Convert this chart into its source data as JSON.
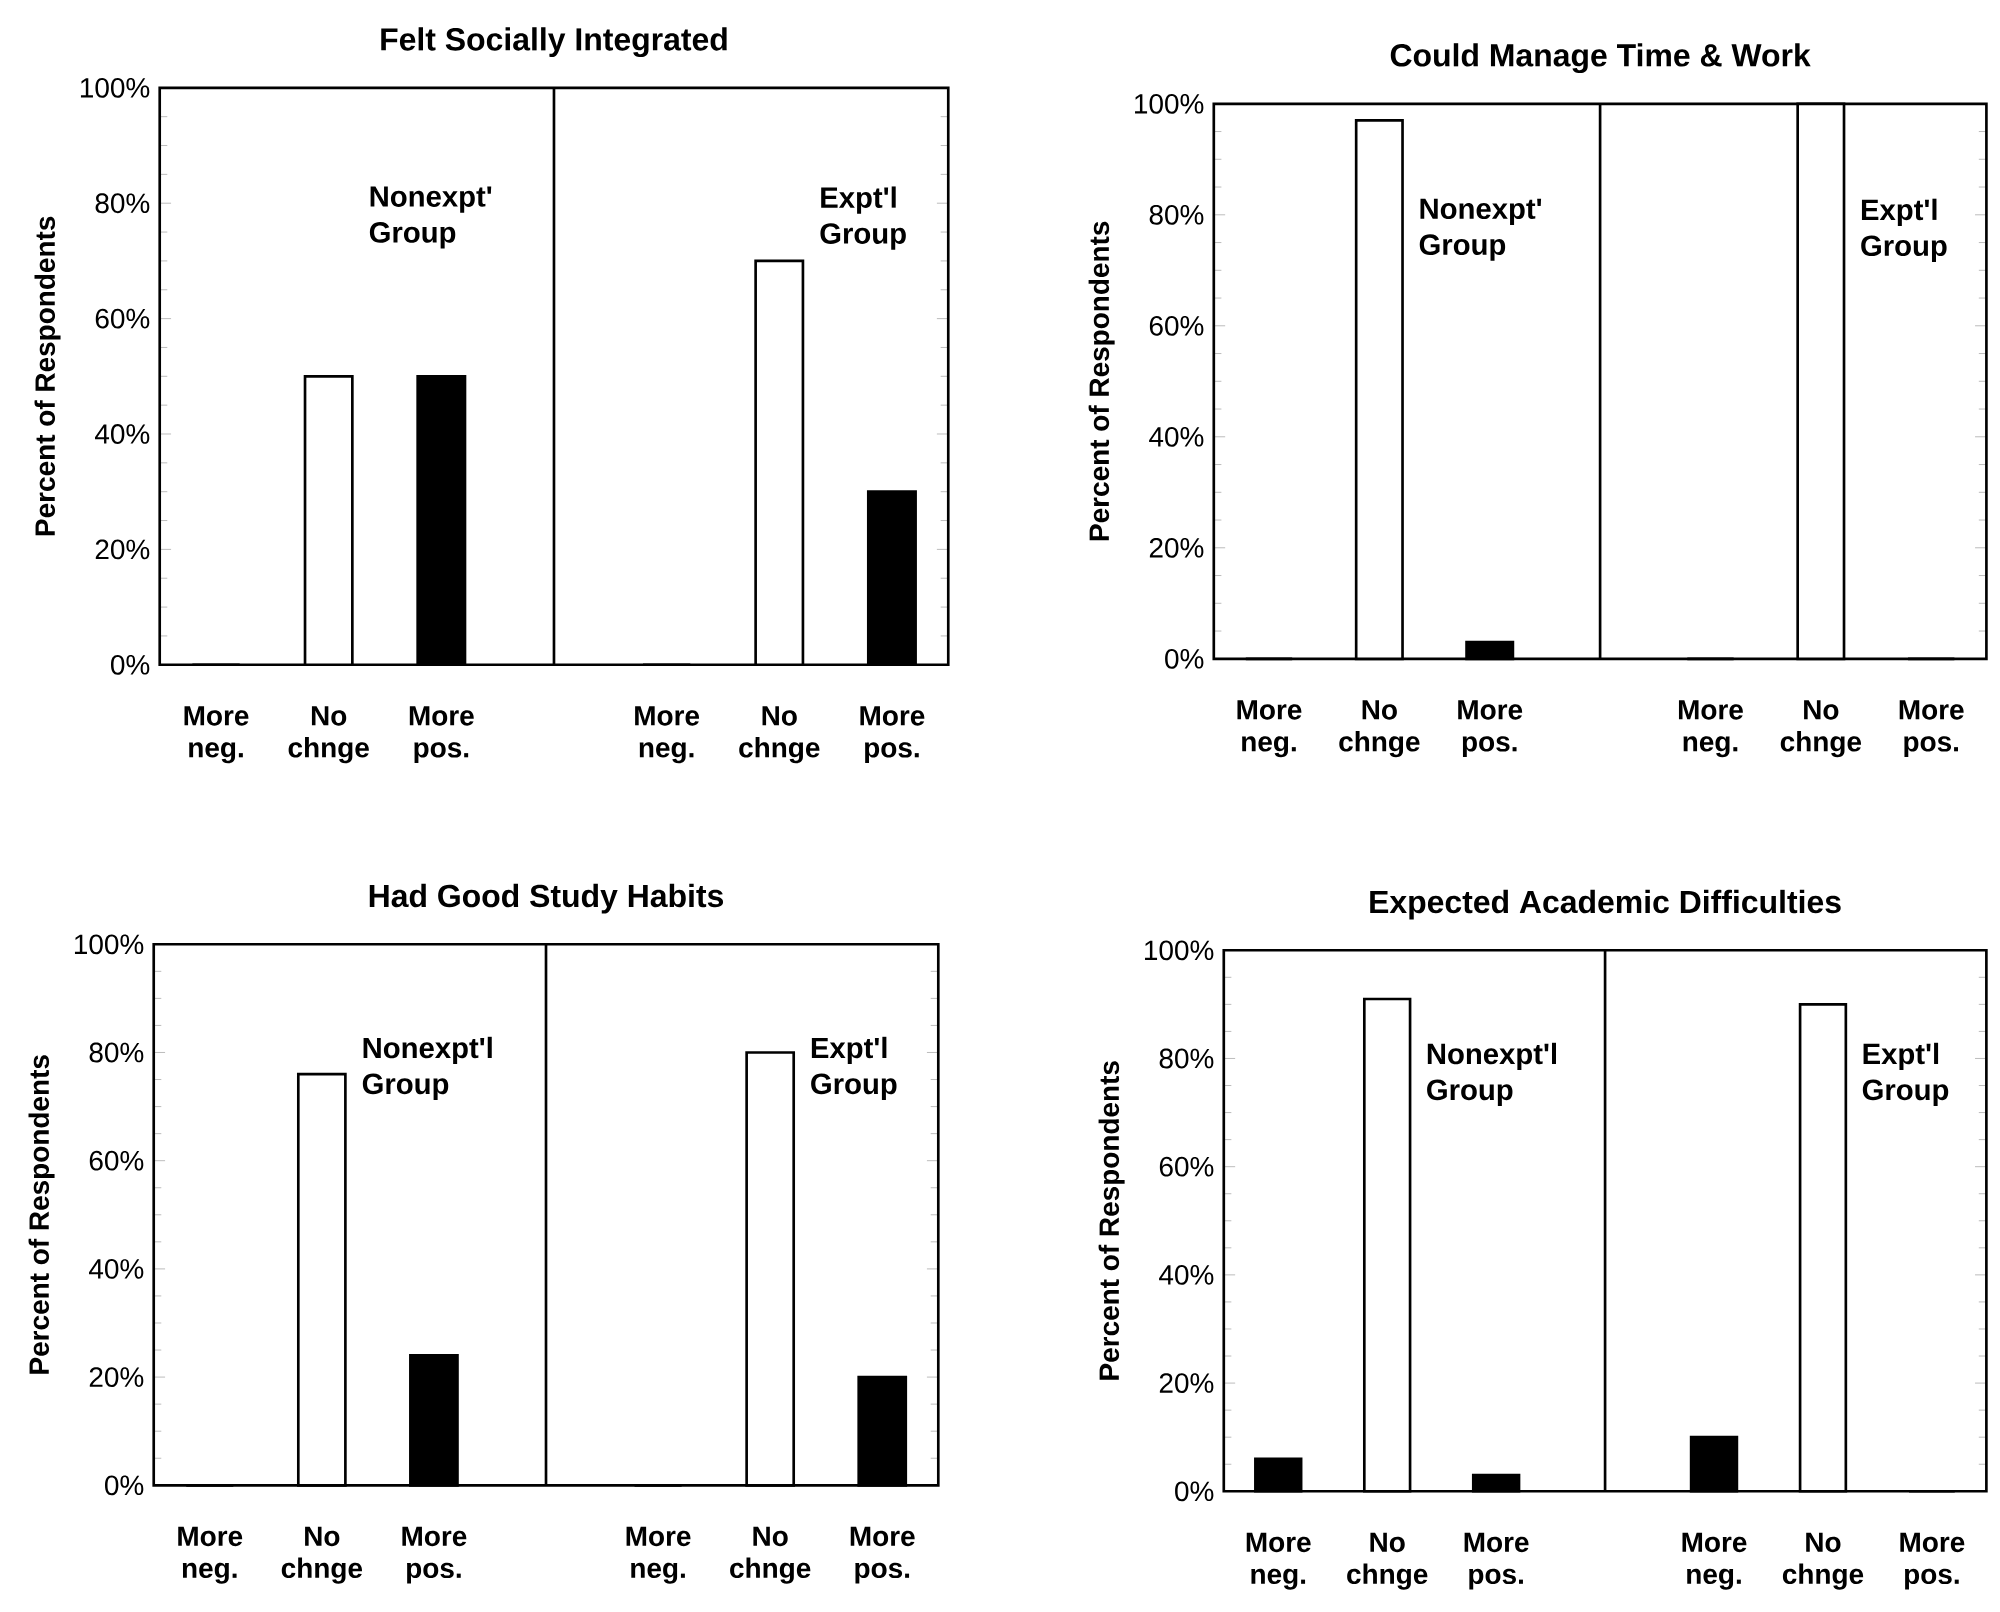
{
  "chart_data": [
    {
      "type": "bar",
      "title": "Felt Socially Integrated",
      "ylabel": "Percent of Respondents",
      "categories": [
        "More neg.",
        "No chnge",
        "More pos.",
        null,
        "More neg.",
        "No chnge",
        "More pos."
      ],
      "values": [
        0,
        50,
        50,
        null,
        0,
        70,
        30
      ],
      "colors": [
        "#000000",
        "#ffffff",
        "#000000",
        "#ffffff",
        "#000000",
        "#ffffff",
        "#000000"
      ],
      "ylim": [
        0,
        100
      ],
      "yticks": [
        {
          "value": 0,
          "label": "0%"
        },
        {
          "value": 20,
          "label": "20%"
        },
        {
          "value": 40,
          "label": "40%"
        },
        {
          "value": 60,
          "label": "60%"
        },
        {
          "value": 80,
          "label": "80%"
        },
        {
          "value": 100,
          "label": "100%"
        }
      ],
      "annotations": [
        "Nonexpt' Group",
        "Expt'l Group"
      ]
    },
    {
      "type": "bar",
      "title": "Could Manage Time & Work",
      "ylabel": "Percent of Respondents",
      "categories": [
        "More neg.",
        "No chnge",
        "More pos.",
        null,
        "More neg.",
        "No chnge",
        "More pos."
      ],
      "values": [
        0,
        97,
        3,
        null,
        0,
        100,
        0
      ],
      "colors": [
        "#000000",
        "#ffffff",
        "#000000",
        "#ffffff",
        "#000000",
        "#ffffff",
        "#000000"
      ],
      "ylim": [
        0,
        100
      ],
      "yticks": [
        {
          "value": 0,
          "label": "0%"
        },
        {
          "value": 20,
          "label": "20%"
        },
        {
          "value": 40,
          "label": "40%"
        },
        {
          "value": 60,
          "label": "60%"
        },
        {
          "value": 80,
          "label": "80%"
        },
        {
          "value": 100,
          "label": "100%"
        }
      ],
      "annotations": [
        "Nonexpt' Group",
        "Expt'l Group"
      ]
    },
    {
      "type": "bar",
      "title": "Had Good Study Habits",
      "ylabel": "Percent of Respondents",
      "categories": [
        "More neg.",
        "No chnge",
        "More pos.",
        null,
        "More neg.",
        "No chnge",
        "More pos."
      ],
      "values": [
        0,
        76,
        24,
        null,
        0,
        80,
        20
      ],
      "colors": [
        "#000000",
        "#ffffff",
        "#000000",
        "#ffffff",
        "#000000",
        "#ffffff",
        "#000000"
      ],
      "ylim": [
        0,
        100
      ],
      "yticks": [
        {
          "value": 0,
          "label": "0%"
        },
        {
          "value": 20,
          "label": "20%"
        },
        {
          "value": 40,
          "label": "40%"
        },
        {
          "value": 60,
          "label": "60%"
        },
        {
          "value": 80,
          "label": "80%"
        },
        {
          "value": 100,
          "label": "100%"
        }
      ],
      "annotations": [
        "Nonexpt'l Group",
        "Expt'l Group"
      ]
    },
    {
      "type": "bar",
      "title": "Expected Academic Difficulties",
      "ylabel": "Percent of Respondents",
      "categories": [
        "More neg.",
        "No chnge",
        "More pos.",
        null,
        "More neg.",
        "No chnge",
        "More pos."
      ],
      "values": [
        6,
        91,
        3,
        null,
        10,
        90,
        0
      ],
      "colors": [
        "#000000",
        "#ffffff",
        "#000000",
        "#ffffff",
        "#000000",
        "#ffffff",
        "#000000"
      ],
      "ylim": [
        0,
        100
      ],
      "yticks": [
        {
          "value": 0,
          "label": "0%"
        },
        {
          "value": 20,
          "label": "20%"
        },
        {
          "value": 40,
          "label": "40%"
        },
        {
          "value": 60,
          "label": "60%"
        },
        {
          "value": 80,
          "label": "80%"
        },
        {
          "value": 100,
          "label": "100%"
        }
      ],
      "annotations": [
        "Nonexpt'l Group",
        "Expt'l Group"
      ]
    }
  ]
}
